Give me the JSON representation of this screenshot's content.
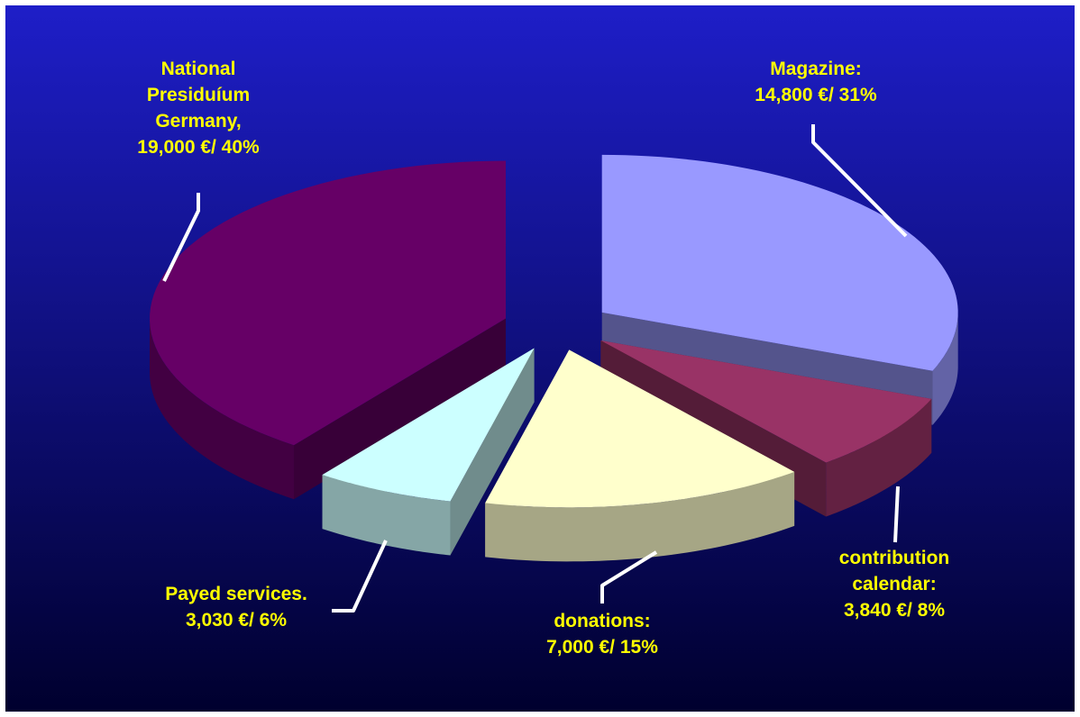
{
  "chart_data": {
    "type": "pie",
    "categories": [
      "Magazine:",
      "contribution calendar:",
      "donations:",
      "Payed services.",
      "National Presiduíum Germany,"
    ],
    "values": [
      14800,
      3840,
      7000,
      3030,
      19000
    ],
    "value_labels": [
      "14,800 €/ 31%",
      "3,840 €/ 8%",
      "7,000 €/ 15%",
      "3,030 €/ 6%",
      "19,000 €/ 40%"
    ],
    "colors": [
      "#9999ff",
      "#993366",
      "#ffffcc",
      "#ccffff",
      "#660066"
    ]
  }
}
